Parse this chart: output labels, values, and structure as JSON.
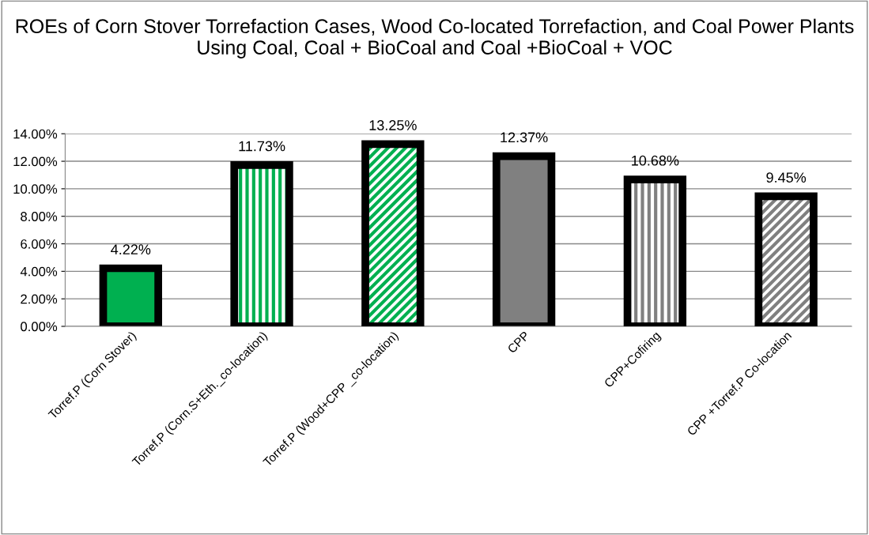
{
  "chart_data": {
    "type": "bar",
    "title": "ROEs of Corn Stover Torrefaction Cases, Wood Co-located Torrefaction, and Coal Power Plants Using Coal, Coal + BioCoal and Coal +BioCoal + VOC",
    "categories": [
      "Torref.P (Corn Stover)",
      "Torref.P (Corn.S+Eth._co-location)",
      "Torref.P (Wood+CPP _co-location)",
      "CPP",
      "CPP+Cofiring",
      "CPP +Torref.P Co-location"
    ],
    "values": [
      4.22,
      11.73,
      13.25,
      12.37,
      10.68,
      9.45
    ],
    "value_labels": [
      "4.22%",
      "11.73%",
      "13.25%",
      "12.37%",
      "10.68%",
      "9.45%"
    ],
    "colors": [
      "#00b050",
      "#00b050",
      "#00b050",
      "#808080",
      "#808080",
      "#808080"
    ],
    "ylim": [
      0,
      14
    ],
    "yticks": [
      {
        "value": 0,
        "label": "0.00%"
      },
      {
        "value": 2,
        "label": "2.00%"
      },
      {
        "value": 4,
        "label": "4.00%"
      },
      {
        "value": 6,
        "label": "6.00%"
      },
      {
        "value": 8,
        "label": "8.00%"
      },
      {
        "value": 10,
        "label": "10.00%"
      },
      {
        "value": 12,
        "label": "12.00%"
      },
      {
        "value": 14,
        "label": "14.00%"
      }
    ],
    "grid": "y"
  }
}
